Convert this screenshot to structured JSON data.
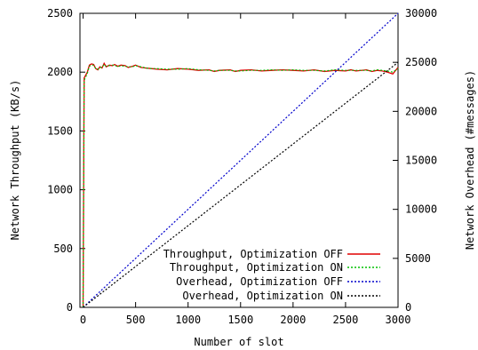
{
  "chart_data": {
    "type": "line",
    "title": "",
    "xlabel": "Number of slot",
    "ylabel": "Network Throughput (KB/s)",
    "y2label": "Network Overhead (#messages)",
    "xlim": [
      -30,
      3000
    ],
    "ylim": [
      0,
      2500
    ],
    "y2lim": [
      0,
      30000
    ],
    "x_ticks": [
      "0",
      "500",
      "1000",
      "1500",
      "2000",
      "2500",
      "3000"
    ],
    "y_ticks": [
      "0",
      "500",
      "1000",
      "1500",
      "2000",
      "2500"
    ],
    "y2_ticks": [
      "0",
      "5000",
      "10000",
      "15000",
      "20000",
      "25000",
      "30000"
    ],
    "legend_placement": "bottom-right",
    "grid": false,
    "series": [
      {
        "name": "Throughput, Optimization OFF",
        "axis": "left",
        "color": "#e00000",
        "dash": "solid",
        "x": [
          0,
          10,
          40,
          60,
          80,
          100,
          120,
          140,
          160,
          180,
          200,
          220,
          250,
          280,
          300,
          330,
          360,
          400,
          430,
          470,
          500,
          550,
          600,
          650,
          700,
          800,
          900,
          1000,
          1100,
          1200,
          1250,
          1300,
          1400,
          1450,
          1500,
          1600,
          1700,
          1800,
          1900,
          2000,
          2100,
          2200,
          2300,
          2400,
          2500,
          2550,
          2600,
          2700,
          2750,
          2800,
          2850,
          2900,
          2950,
          3000
        ],
        "y": [
          0,
          1950,
          2000,
          2060,
          2070,
          2065,
          2030,
          2020,
          2045,
          2035,
          2075,
          2045,
          2060,
          2055,
          2065,
          2050,
          2060,
          2055,
          2040,
          2050,
          2060,
          2040,
          2035,
          2030,
          2025,
          2020,
          2030,
          2025,
          2015,
          2020,
          2005,
          2015,
          2020,
          2005,
          2015,
          2020,
          2010,
          2015,
          2020,
          2015,
          2010,
          2020,
          2005,
          2015,
          2010,
          2020,
          2010,
          2020,
          2005,
          2015,
          2010,
          2000,
          1985,
          2040
        ]
      },
      {
        "name": "Throughput, Optimization ON",
        "axis": "left",
        "color": "#00c000",
        "dash": "2,2",
        "x": [
          0,
          10,
          40,
          60,
          80,
          100,
          120,
          140,
          160,
          180,
          200,
          220,
          250,
          280,
          300,
          330,
          360,
          400,
          430,
          470,
          500,
          550,
          600,
          650,
          700,
          800,
          900,
          1000,
          1100,
          1200,
          1250,
          1300,
          1400,
          1450,
          1500,
          1600,
          1700,
          1800,
          1900,
          2000,
          2100,
          2200,
          2300,
          2400,
          2500,
          2550,
          2600,
          2700,
          2750,
          2800,
          2850,
          2900,
          2950,
          3000
        ],
        "y": [
          0,
          1930,
          1990,
          2050,
          2060,
          2060,
          2030,
          2025,
          2040,
          2040,
          2065,
          2050,
          2055,
          2060,
          2060,
          2045,
          2055,
          2050,
          2045,
          2045,
          2055,
          2045,
          2035,
          2030,
          2030,
          2025,
          2025,
          2030,
          2020,
          2015,
          2010,
          2015,
          2015,
          2010,
          2010,
          2015,
          2015,
          2020,
          2015,
          2020,
          2015,
          2015,
          2010,
          2020,
          2015,
          2015,
          2015,
          2015,
          2010,
          2020,
          2015,
          2010,
          2000,
          2030
        ]
      },
      {
        "name": "Overhead, Optimization OFF",
        "axis": "right",
        "color": "#0000cc",
        "dash": "2,2",
        "x": [
          0,
          3000
        ],
        "y": [
          0,
          30000
        ]
      },
      {
        "name": "Overhead, Optimization ON",
        "axis": "right",
        "color": "#000000",
        "dash": "2,2",
        "x": [
          0,
          3000
        ],
        "y": [
          0,
          25000
        ]
      }
    ]
  }
}
